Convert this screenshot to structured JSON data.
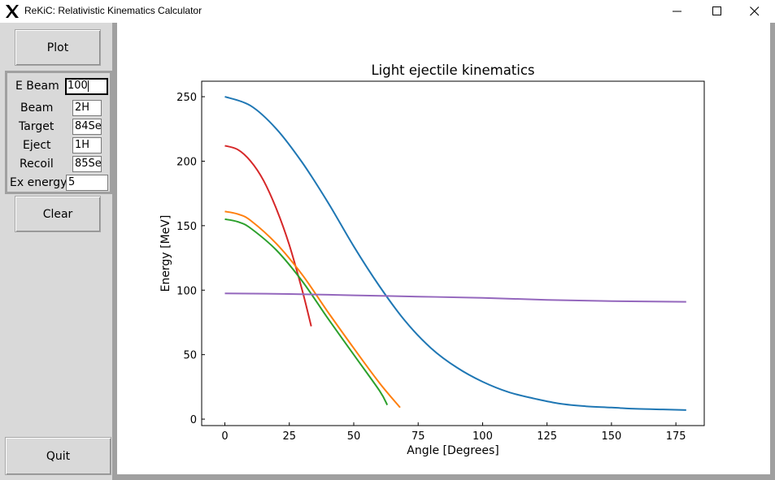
{
  "window": {
    "title": "ReKiC: Relativistic Kinematics Calculator"
  },
  "controls": {
    "plot_label": "Plot",
    "clear_label": "Clear",
    "quit_label": "Quit",
    "fields": [
      {
        "label": "E Beam",
        "value": "100"
      },
      {
        "label": "Beam",
        "value": "2H"
      },
      {
        "label": "Target",
        "value": "84Se"
      },
      {
        "label": "Eject",
        "value": "1H"
      },
      {
        "label": "Recoil",
        "value": "85Se"
      },
      {
        "label": "Ex energy",
        "value": "5"
      }
    ]
  },
  "chart_data": {
    "type": "line",
    "title": "Light ejectile kinematics",
    "xlabel": "Angle [Degrees]",
    "ylabel": "Energy [MeV]",
    "xlim": [
      -9,
      186
    ],
    "ylim": [
      -5,
      262
    ],
    "xticks": [
      0,
      25,
      50,
      75,
      100,
      125,
      150,
      175
    ],
    "yticks": [
      0,
      50,
      100,
      150,
      200,
      250
    ],
    "grid": false,
    "series": [
      {
        "color": "#1f77b4",
        "x": [
          0,
          10,
          20,
          30,
          40,
          50,
          60,
          70,
          80,
          90,
          100,
          110,
          120,
          130,
          140,
          150,
          160,
          170,
          179
        ],
        "y": [
          250,
          243,
          225,
          199,
          168,
          134,
          103,
          76,
          55,
          40,
          29,
          21,
          16,
          12,
          10,
          9,
          8,
          7.5,
          7
        ]
      },
      {
        "color": "#d62728",
        "x": [
          0,
          5,
          10,
          15,
          20,
          25,
          30,
          33.5
        ],
        "y": [
          212,
          209,
          200,
          185,
          163,
          135,
          100,
          72
        ]
      },
      {
        "color": "#ff7f0e",
        "x": [
          0,
          5,
          10,
          20,
          30,
          40,
          50,
          60,
          68
        ],
        "y": [
          161,
          159,
          154,
          136,
          112,
          83,
          55,
          28,
          9
        ]
      },
      {
        "color": "#2ca02c",
        "x": [
          0,
          5,
          10,
          20,
          30,
          40,
          50,
          60,
          63
        ],
        "y": [
          155,
          153,
          148,
          131,
          107,
          78,
          50,
          22,
          11
        ]
      },
      {
        "color": "#9467bd",
        "x": [
          0,
          25,
          50,
          75,
          100,
          125,
          150,
          179
        ],
        "y": [
          97.5,
          97,
          96,
          95,
          94,
          92.5,
          91.5,
          91
        ]
      }
    ]
  }
}
